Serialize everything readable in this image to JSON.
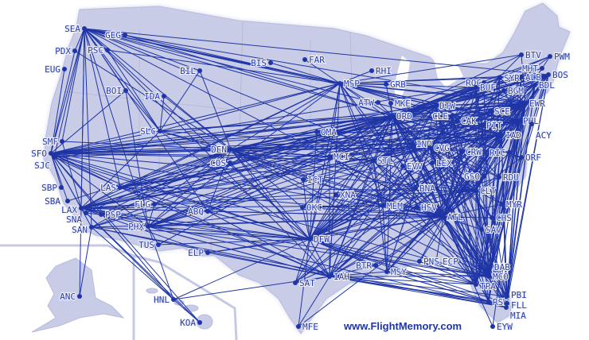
{
  "map": {
    "credit": "www.FlightMemory.com",
    "route_color": "#1f35a6",
    "land_color": "#c9cce6",
    "airports": [
      "SEA",
      "GEG",
      "PSC",
      "PDX",
      "EUG",
      "BIL",
      "BIS",
      "FAR",
      "RHI",
      "MSP",
      "GRB",
      "ATW",
      "MKE",
      "ORD",
      "DTW",
      "BOI",
      "IDA",
      "SLC",
      "DEN",
      "COS",
      "SMF",
      "SFO",
      "SJC",
      "SBP",
      "SBA",
      "LAX",
      "SNA",
      "PSP",
      "SAN",
      "LAS",
      "FLG",
      "ABQ",
      "PHX",
      "TUS",
      "ELP",
      "ANC",
      "HNL",
      "KOA",
      "OMA",
      "MCI",
      "STL",
      "ICT",
      "XNA",
      "OKC",
      "DFW",
      "IAH",
      "SAT",
      "MFE",
      "BTR",
      "MSY",
      "PNS",
      "ECP",
      "MEM",
      "HSV",
      "BNA",
      "ATL",
      "EVV",
      "IND",
      "CVG",
      "LEX",
      "CRW",
      "CLE",
      "CAK",
      "PIT",
      "SCE",
      "EWR",
      "PHL",
      "ACY",
      "IAD",
      "RIC",
      "ORF",
      "GSO",
      "RDU",
      "CLT",
      "MYR",
      "CHS",
      "SAV",
      "DAB",
      "MCO",
      "TPA",
      "RSW",
      "PBI",
      "FLL",
      "MIA",
      "EYW",
      "BTV",
      "PWM",
      "MHT",
      "BOS",
      "BDL",
      "ALB",
      "SYR",
      "ROC",
      "BUF",
      "BGM"
    ],
    "routes": [
      "SEA-GEG",
      "SEA-PSC",
      "SEA-PDX",
      "SEA-SFO",
      "SEA-SJC",
      "SEA-LAX",
      "SEA-SAN",
      "SEA-LAS",
      "SEA-PHX",
      "SEA-DEN",
      "SEA-SLC",
      "SEA-BOI",
      "SEA-ORD",
      "SEA-MSP",
      "SEA-DTW",
      "SEA-EWR",
      "SEA-BOS",
      "SEA-IAD",
      "SEA-ATL",
      "SEA-DFW",
      "SEA-ANC",
      "SEA-IAH",
      "SEA-BIL",
      "SEA-SMF",
      "SEA-ABQ",
      "SEA-CLT",
      "SEA-PHL",
      "PDX-SFO",
      "PDX-DEN",
      "PSC-SLC",
      "PSC-MSP",
      "EUG-SFO",
      "GEG-MSP",
      "GEG-ORD",
      "BIL-DEN",
      "BIL-SLC",
      "BOI-SLC",
      "BOI-SFO",
      "BOI-PHX",
      "IDA-SLC",
      "IDA-DEN",
      "SFO-ORD",
      "SFO-EWR",
      "SFO-IAD",
      "SFO-DEN",
      "SFO-LAS",
      "SFO-LAX",
      "SFO-SAN",
      "SFO-DFW",
      "SFO-ATL",
      "SFO-IAH",
      "SFO-PHL",
      "SFO-BOS",
      "SFO-DTW",
      "SFO-MSP",
      "SFO-CLT",
      "SFO-MCO",
      "SFO-PHX",
      "SFO-SLC",
      "SFO-HNL",
      "SFO-KOA",
      "SFO-CVG",
      "SFO-STL",
      "SFO-MCI",
      "SFO-OMA",
      "SFO-IND",
      "SJC-ORD",
      "SJC-DFW",
      "SJC-LAS",
      "SJC-DEN",
      "SMF-DEN",
      "SMF-LAX",
      "SBP-SFO",
      "SBA-SFO",
      "SBA-DEN",
      "LAX-ORD",
      "LAX-EWR",
      "LAX-DEN",
      "LAX-DFW",
      "LAX-IAH",
      "LAX-ATL",
      "LAX-PHL",
      "LAX-CLT",
      "LAX-BOS",
      "LAX-MIA",
      "LAX-HNL",
      "LAX-KOA",
      "LAX-LAS",
      "LAX-SLC",
      "LAX-IAD",
      "LAX-DTW",
      "LAX-MSP",
      "LAX-STL",
      "LAX-MCO",
      "LAX-BNA",
      "LAX-MEM",
      "LAX-CVG",
      "LAX-ABQ",
      "LAX-ELP",
      "SNA-DEN",
      "SNA-DFW",
      "PSP-ORD",
      "PSP-DEN",
      "SAN-ANC",
      "SAN-HNL",
      "SAN-ORD",
      "SAN-DFW",
      "SAN-ATL",
      "SAN-IAH",
      "SAN-EWR",
      "SAN-DEN",
      "LAS-ORD",
      "LAS-DEN",
      "LAS-DFW",
      "LAS-EWR",
      "LAS-ATL",
      "LAS-MSP",
      "LAS-DTW",
      "LAS-IAD",
      "LAS-PHL",
      "LAS-CLT",
      "LAS-BOS",
      "LAS-MCI",
      "LAS-IAH",
      "PHX-ORD",
      "PHX-DEN",
      "PHX-DFW",
      "PHX-EWR",
      "PHX-ATL",
      "PHX-IAH",
      "PHX-PHL",
      "PHX-CLT",
      "PHX-MSP",
      "PHX-DTW",
      "PHX-IAD",
      "PHX-FLG",
      "PHX-TUS",
      "PHX-HNL",
      "PHX-MCO",
      "PHX-BOS",
      "TUS-DFW",
      "TUS-ORD",
      "ELP-DFW",
      "ELP-IAH",
      "ELP-ATL",
      "ABQ-DFW",
      "ABQ-DEN",
      "ABQ-ORD",
      "ABQ-IAH",
      "ABQ-ATL",
      "FLG-DEN",
      "HNL-DFW",
      "HNL-IAH",
      "HNL-KOA",
      "DEN-ORD",
      "DEN-EWR",
      "DEN-IAD",
      "DEN-ATL",
      "DEN-DFW",
      "DEN-IAH",
      "DEN-MSP",
      "DEN-DTW",
      "DEN-PHL",
      "DEN-BOS",
      "DEN-CLT",
      "DEN-MCO",
      "DEN-STL",
      "DEN-MCI",
      "DEN-OMA",
      "DEN-SLC",
      "DEN-CVG",
      "DEN-IND",
      "DEN-PIT",
      "DEN-CLE",
      "DEN-BNA",
      "DEN-MEM",
      "DEN-TPA",
      "DEN-OKC",
      "DEN-ICT",
      "COS-DFW",
      "COS-ORD",
      "SLC-ORD",
      "SLC-ATL",
      "SLC-DFW",
      "SLC-MSP",
      "SLC-CVG",
      "SLC-EWR",
      "MSP-ORD",
      "MSP-DTW",
      "MSP-EWR",
      "MSP-BOS",
      "MSP-ATL",
      "MSP-DFW",
      "MSP-IAH",
      "MSP-BIS",
      "MSP-FAR",
      "MSP-RHI",
      "MSP-GRB",
      "MSP-STL",
      "MSP-MCI",
      "MSP-MEM",
      "MSP-IAD",
      "MSP-PHL",
      "MSP-LGA",
      "MSP-BUF",
      "MSP-ALB",
      "MSP-MCO",
      "MSP-TPA",
      "MSP-CVG",
      "MSP-CLE",
      "ORD-EWR",
      "ORD-BOS",
      "ORD-IAD",
      "ORD-ATL",
      "ORD-DFW",
      "ORD-IAH",
      "ORD-MCO",
      "ORD-TPA",
      "ORD-MIA",
      "ORD-FLL",
      "ORD-PHL",
      "ORD-CLT",
      "ORD-RDU",
      "ORD-BDL",
      "ORD-ALB",
      "ORD-SYR",
      "ORD-ROC",
      "ORD-BUF",
      "ORD-PIT",
      "ORD-CLE",
      "ORD-CVG",
      "ORD-IND",
      "ORD-STL",
      "ORD-MCI",
      "ORD-OMA",
      "ORD-MEM",
      "ORD-BNA",
      "ORD-MSY",
      "ORD-SAT",
      "ORD-OKC",
      "ORD-XNA",
      "ORD-ICT",
      "ORD-HSV",
      "ORD-CHS",
      "ORD-SAV",
      "ORD-RSW",
      "ORD-PBI",
      "ORD-GRB",
      "ORD-ATW",
      "ORD-MKE",
      "ORD-DTW",
      "ORD-GSO",
      "ORD-RIC",
      "ORD-ORF",
      "ORD-PWM",
      "ORD-MHT",
      "ORD-BTV",
      "DTW-EWR",
      "DTW-BOS",
      "DTW-IAD",
      "DTW-ATL",
      "DTW-DFW",
      "DTW-IAH",
      "DTW-MCO",
      "DTW-TPA",
      "DTW-FLL",
      "DTW-PHL",
      "DTW-LGA",
      "DTW-MEM",
      "DTW-BNA",
      "DTW-STL",
      "DTW-MCI",
      "DTW-ALB",
      "DTW-SYR",
      "DTW-ROC",
      "DTW-BUF",
      "DTW-BGM",
      "DTW-PWM",
      "DTW-BDL",
      "DTW-RDU",
      "DTW-CLT",
      "DTW-RSW",
      "EWR-ATL",
      "EWR-DFW",
      "EWR-IAH",
      "EWR-MCO",
      "EWR-TPA",
      "EWR-MIA",
      "EWR-FLL",
      "EWR-PBI",
      "EWR-RSW",
      "EWR-CLT",
      "EWR-RDU",
      "EWR-CVG",
      "EWR-IND",
      "EWR-STL",
      "EWR-MCI",
      "EWR-MEM",
      "EWR-BNA",
      "EWR-MSY",
      "EWR-SAT",
      "EWR-DEN",
      "EWR-CLE",
      "EWR-PIT",
      "EWR-CAK",
      "EWR-BTV",
      "EWR-BOS",
      "EWR-SYR",
      "EWR-ROC",
      "EWR-BUF",
      "EWR-SAV",
      "EWR-CHS",
      "EWR-MYR",
      "EWR-DAB",
      "EWR-EYW",
      "EWR-HSV",
      "EWR-PNS",
      "PHL-ATL",
      "PHL-DFW",
      "PHL-MCO",
      "PHL-TPA",
      "PHL-FLL",
      "PHL-MIA",
      "PHL-CLT",
      "PHL-IAH",
      "PHL-MSY",
      "PHL-PBI",
      "PHL-RSW",
      "PHL-BNA",
      "PHL-MEM",
      "IAD-ATL",
      "IAD-DFW",
      "IAD-IAH",
      "IAD-MCO",
      "IAD-TPA",
      "IAD-MIA",
      "IAD-FLL",
      "IAD-CLT",
      "IAD-STL",
      "IAD-MCI",
      "IAD-OMA",
      "IAD-CVG",
      "IAD-BOS",
      "IAD-SCE",
      "IAD-PBI",
      "IAD-RSW",
      "IAD-MSY",
      "IAD-SAT",
      "BOS-ATL",
      "BOS-DFW",
      "BOS-MCO",
      "BOS-TPA",
      "BOS-FLL",
      "BOS-PBI",
      "BOS-CLT",
      "BOS-BWI",
      "BOS-IAH",
      "ATL-DFW",
      "ATL-IAH",
      "ATL-MCO",
      "ATL-TPA",
      "ATL-MIA",
      "ATL-FLL",
      "ATL-PBI",
      "ATL-RSW",
      "ATL-DAB",
      "ATL-SAV",
      "ATL-CHS",
      "ATL-MYR",
      "ATL-CLT",
      "ATL-RDU",
      "ATL-GSO",
      "ATL-RIC",
      "ATL-ORF",
      "ATL-CVG",
      "ATL-IND",
      "ATL-STL",
      "ATL-MCI",
      "ATL-MEM",
      "ATL-BNA",
      "ATL-HSV",
      "ATL-MSY",
      "ATL-BTR",
      "ATL-PNS",
      "ATL-ECP",
      "ATL-SAT",
      "ATL-OKC",
      "ATL-XNA",
      "ATL-ICT",
      "ATL-OMA",
      "ATL-LEX",
      "ATL-EVV",
      "ATL-CRW",
      "ATL-PIT",
      "ATL-CLE",
      "ATL-ALB",
      "ATL-SYR",
      "ATL-ROC",
      "ATL-BUF",
      "ATL-BDL",
      "ATL-PWM",
      "ATL-MHT",
      "ATL-EYW",
      "ATL-MFE",
      "DFW-IAH",
      "DFW-MCO",
      "DFW-TPA",
      "DFW-MIA",
      "DFW-FLL",
      "DFW-CLT",
      "DFW-RDU",
      "DFW-STL",
      "DFW-MCI",
      "DFW-OMA",
      "DFW-MEM",
      "DFW-BNA",
      "DFW-MSY",
      "DFW-SAT",
      "DFW-OKC",
      "DFW-XNA",
      "DFW-ICT",
      "DFW-MFE",
      "DFW-BTR",
      "DFW-CVG",
      "DFW-IND",
      "DFW-PIT",
      "DFW-CLE",
      "IAH-MCO",
      "IAH-TPA",
      "IAH-MIA",
      "IAH-FLL",
      "IAH-CLT",
      "IAH-MSY",
      "IAH-BTR",
      "IAH-MFE",
      "IAH-SAT",
      "IAH-STL",
      "IAH-MCI",
      "IAH-CVG",
      "IAH-RSW",
      "IAH-PBI",
      "CLT-MCO",
      "CLT-TPA",
      "CLT-MIA",
      "CLT-FLL",
      "CLT-PBI",
      "CLT-RSW",
      "CLT-CHS",
      "CLT-SAV",
      "CLT-MYR",
      "CLT-DAB",
      "CLT-PIT",
      "CLT-CLE",
      "CLT-CVG",
      "CLT-IND",
      "CLT-STL",
      "CLT-BDL",
      "CLT-SYR",
      "CLT-ALB",
      "MCO-CVG",
      "MCO-IND",
      "MCO-STL",
      "MCO-MCI",
      "MCO-PIT",
      "MCO-CLE",
      "MCO-BNA",
      "MCO-MEM",
      "MCO-MSY",
      "MCO-BUF",
      "MCO-ROC",
      "MCO-SYR",
      "MCO-ALB",
      "MCO-BDL",
      "MCO-PVD",
      "MCO-RIC",
      "MCO-ORF",
      "MCO-RDU",
      "TPA-CVG",
      "TPA-PIT",
      "TPA-CLE",
      "TPA-STL",
      "TPA-BDL",
      "TPA-BUF",
      "TPA-MSY",
      "TPA-PNS",
      "MIA-CVG",
      "MIA-MSY",
      "MIA-SAN",
      "FLL-BUF",
      "FLL-BDL",
      "PBI-BDL",
      "RSW-CVG",
      "RSW-MSY",
      "CVG-BOS",
      "CVG-LGA",
      "CVG-PHL",
      "CVG-MSY",
      "CVG-SAT",
      "CVG-MCI",
      "CVG-STL",
      "CVG-MEM",
      "CVG-BNA",
      "CVG-OMA",
      "CVG-ALB",
      "CVG-SYR",
      "CVG-ROC",
      "CVG-BUF",
      "CVG-PIT",
      "CVG-CLE",
      "CVG-RDU",
      "CVG-GSO",
      "CVG-RIC",
      "CVG-ORF",
      "CVG-SAV",
      "CVG-CHS",
      "CVG-MYR",
      "CVG-BDL",
      "CVG-PWM",
      "CVG-BTV",
      "STL-MCI",
      "STL-BNA",
      "STL-MEM",
      "STL-MSY",
      "STL-IND",
      "STL-PIT",
      "STL-CLE",
      "STL-BOS",
      "STL-OMA",
      "STL-OKC",
      "STL-ICT",
      "MEM-MSY",
      "MEM-BNA",
      "MEM-OKC",
      "MEM-XNA",
      "BNA-MSY",
      "HSV-MEM",
      "PIT-BOS",
      "PIT-PHL",
      "CLE-BOS",
      "CLE-PHL",
      "CLE-PIT",
      "SCE-PHL",
      "SCE-PIT",
      "BGM-PHL",
      "ALB-PHL",
      "BTV-MSP"
    ]
  }
}
